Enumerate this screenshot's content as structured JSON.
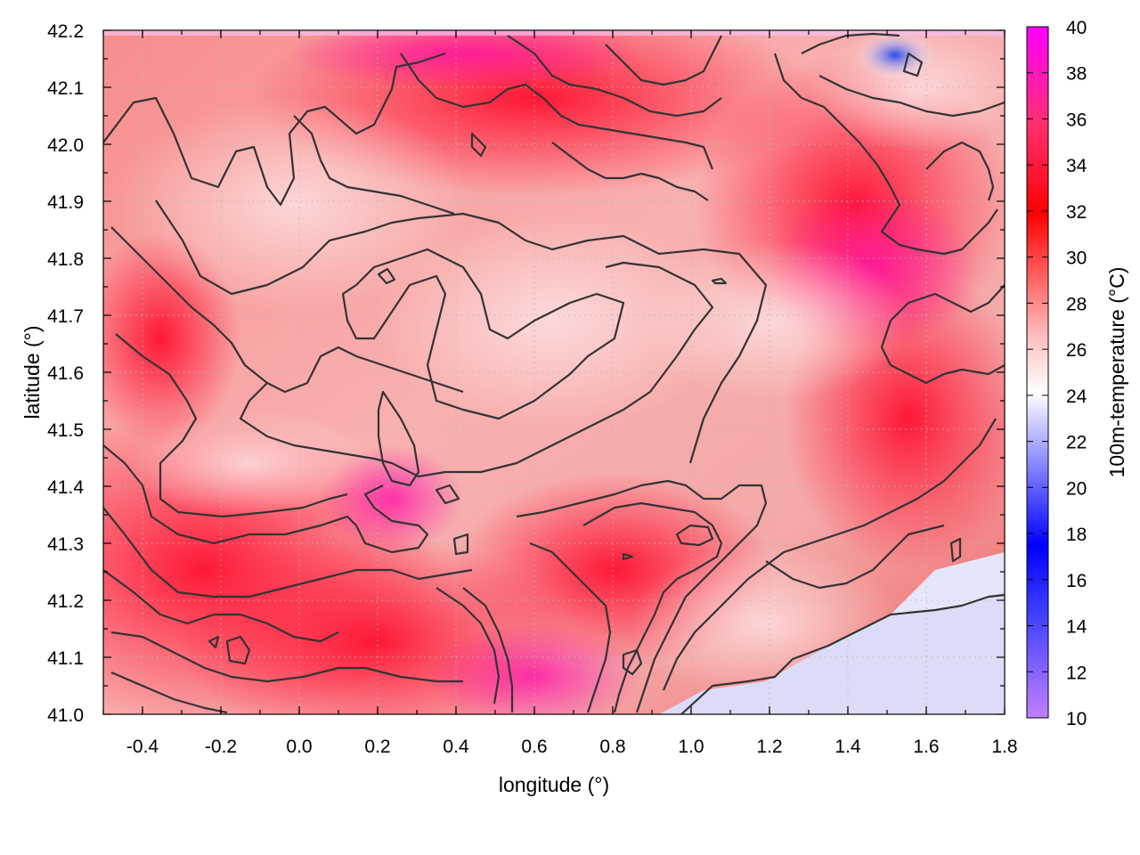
{
  "chart_data": {
    "type": "heatmap",
    "xlabel": "longitude (°)",
    "ylabel": "latitude (°)",
    "colorbar_label": "100m-temperature (°C)",
    "xlim": [
      -0.5,
      1.8
    ],
    "ylim": [
      41.0,
      42.2
    ],
    "clim": [
      10,
      40
    ],
    "x_ticks": [
      "-0.4",
      "-0.2",
      "0.0",
      "0.2",
      "0.4",
      "0.6",
      "0.8",
      "1.0",
      "1.2",
      "1.4",
      "1.6",
      "1.8"
    ],
    "y_ticks": [
      "41.0",
      "41.1",
      "41.2",
      "41.3",
      "41.4",
      "41.5",
      "41.6",
      "41.7",
      "41.8",
      "41.9",
      "42.0",
      "42.1",
      "42.2"
    ],
    "colorbar_ticks": [
      "10",
      "12",
      "14",
      "16",
      "18",
      "20",
      "22",
      "24",
      "26",
      "28",
      "30",
      "32",
      "34",
      "36",
      "38",
      "40"
    ],
    "grid": true,
    "colormap": [
      "#cc88ff",
      "#0000ff",
      "#ffffff",
      "#ff0000",
      "#ff00ff"
    ],
    "contour_color": "#333333",
    "description_values": {
      "sea_temperature_approx": 23.5,
      "inland_temperature_range": [
        27,
        37
      ]
    }
  }
}
